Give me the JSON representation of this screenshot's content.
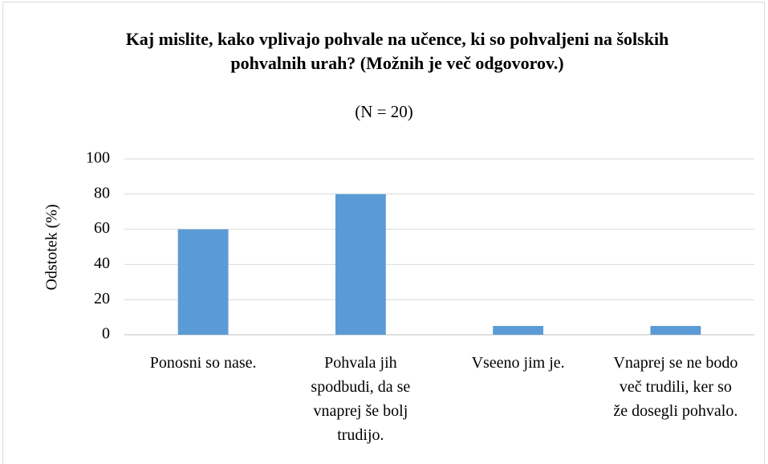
{
  "chart_data": {
    "type": "bar",
    "title": "Kaj mislite, kako vplivajo pohvale na učence, ki so pohvaljeni na šolskih pohvalnih urah? (Možnih je več odgovorov.)",
    "subtitle": "(N = 20)",
    "y_label": "Odstotek (%)",
    "categories": [
      "Ponosni so nase.",
      "Pohvala jih spodbudi, da se vnaprej še bolj trudijo.",
      "Vseeno jim je.",
      "Vnaprej se ne bodo več trudili, ker so že dosegli pohvalo."
    ],
    "values": [
      60,
      80,
      5,
      5
    ],
    "color": "#5b9bd5",
    "ylim": [
      0,
      100
    ],
    "yticks": [
      0,
      20,
      40,
      60,
      80,
      100
    ],
    "grid": true
  }
}
